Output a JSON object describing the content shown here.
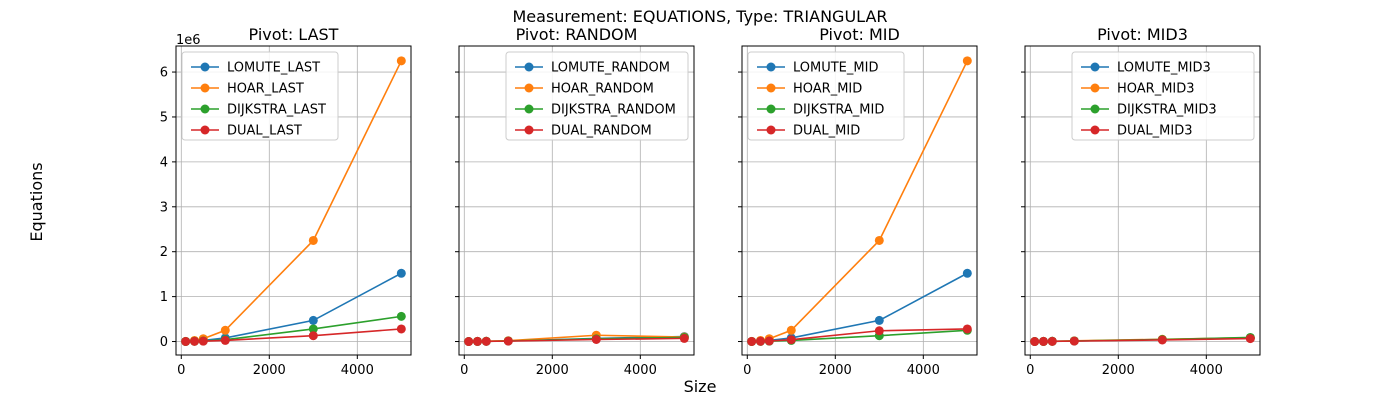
{
  "figure": {
    "suptitle": "Measurement: EQUATIONS, Type: TRIANGULAR",
    "xlabel": "Size",
    "ylabel": "Equations",
    "yscale_label": "1e6"
  },
  "colors": {
    "LOMUTE": "#1f77b4",
    "HOAR": "#ff7f0e",
    "DIJKSTRA": "#2ca02c",
    "DUAL": "#d62728",
    "grid": "#b0b0b0"
  },
  "chart_data": [
    {
      "type": "line",
      "title": "Pivot: LAST",
      "legend_position": "upper-left",
      "x": [
        100,
        300,
        500,
        1000,
        3000,
        5000
      ],
      "xlim": [
        -120,
        5220
      ],
      "ylim": [
        -300000,
        6580000
      ],
      "xticks": [
        0,
        2000,
        4000
      ],
      "xtick_labels": [
        "0",
        "2000",
        "4000"
      ],
      "yticks": [
        0,
        1000000,
        2000000,
        3000000,
        4000000,
        5000000,
        6000000
      ],
      "ytick_labels": [
        "0",
        "1",
        "2",
        "3",
        "4",
        "5",
        "6"
      ],
      "show_yticklabels": true,
      "series": [
        {
          "name": "LOMUTE_LAST",
          "color_key": "LOMUTE",
          "values": [
            1500,
            10000,
            25000,
            80000,
            470000,
            1520000
          ]
        },
        {
          "name": "HOAR_LAST",
          "color_key": "HOAR",
          "values": [
            2500,
            23000,
            62000,
            250000,
            2250000,
            6250000
          ]
        },
        {
          "name": "DIJKSTRA_LAST",
          "color_key": "DIJKSTRA",
          "values": [
            800,
            6000,
            12000,
            40000,
            280000,
            560000
          ]
        },
        {
          "name": "DUAL_LAST",
          "color_key": "DUAL",
          "values": [
            600,
            4000,
            8000,
            25000,
            130000,
            280000
          ]
        }
      ]
    },
    {
      "type": "line",
      "title": "Pivot: RANDOM",
      "legend_position": "upper-right",
      "x": [
        100,
        300,
        500,
        1000,
        3000,
        5000
      ],
      "xlim": [
        -120,
        5220
      ],
      "ylim": [
        -300000,
        6580000
      ],
      "xticks": [
        0,
        2000,
        4000
      ],
      "xtick_labels": [
        "0",
        "2000",
        "4000"
      ],
      "yticks": [
        0,
        1000000,
        2000000,
        3000000,
        4000000,
        5000000,
        6000000
      ],
      "ytick_labels": [
        "0",
        "1",
        "2",
        "3",
        "4",
        "5",
        "6"
      ],
      "show_yticklabels": false,
      "series": [
        {
          "name": "LOMUTE_RANDOM",
          "color_key": "LOMUTE",
          "values": [
            500,
            2500,
            5000,
            12000,
            70000,
            110000
          ]
        },
        {
          "name": "HOAR_RANDOM",
          "color_key": "HOAR",
          "values": [
            700,
            3500,
            7000,
            18000,
            140000,
            100000
          ]
        },
        {
          "name": "DIJKSTRA_RANDOM",
          "color_key": "DIJKSTRA",
          "values": [
            500,
            2500,
            5000,
            12000,
            60000,
            90000
          ]
        },
        {
          "name": "DUAL_RANDOM",
          "color_key": "DUAL",
          "values": [
            400,
            2000,
            4000,
            9000,
            45000,
            70000
          ]
        }
      ]
    },
    {
      "type": "line",
      "title": "Pivot: MID",
      "legend_position": "upper-left",
      "x": [
        100,
        300,
        500,
        1000,
        3000,
        5000
      ],
      "xlim": [
        -120,
        5220
      ],
      "ylim": [
        -300000,
        6580000
      ],
      "xticks": [
        0,
        2000,
        4000
      ],
      "xtick_labels": [
        "0",
        "2000",
        "4000"
      ],
      "yticks": [
        0,
        1000000,
        2000000,
        3000000,
        4000000,
        5000000,
        6000000
      ],
      "ytick_labels": [
        "0",
        "1",
        "2",
        "3",
        "4",
        "5",
        "6"
      ],
      "show_yticklabels": false,
      "series": [
        {
          "name": "LOMUTE_MID",
          "color_key": "LOMUTE",
          "values": [
            1500,
            10000,
            25000,
            80000,
            470000,
            1520000
          ]
        },
        {
          "name": "HOAR_MID",
          "color_key": "HOAR",
          "values": [
            2500,
            23000,
            62000,
            250000,
            2250000,
            6250000
          ]
        },
        {
          "name": "DIJKSTRA_MID",
          "color_key": "DIJKSTRA",
          "values": [
            600,
            4000,
            8000,
            25000,
            130000,
            250000
          ]
        },
        {
          "name": "DUAL_MID",
          "color_key": "DUAL",
          "values": [
            800,
            6000,
            12000,
            40000,
            240000,
            280000
          ]
        }
      ]
    },
    {
      "type": "line",
      "title": "Pivot: MID3",
      "legend_position": "upper-right",
      "x": [
        100,
        300,
        500,
        1000,
        3000,
        5000
      ],
      "xlim": [
        -120,
        5220
      ],
      "ylim": [
        -300000,
        6580000
      ],
      "xticks": [
        0,
        2000,
        4000
      ],
      "xtick_labels": [
        "0",
        "2000",
        "4000"
      ],
      "yticks": [
        0,
        1000000,
        2000000,
        3000000,
        4000000,
        5000000,
        6000000
      ],
      "ytick_labels": [
        "0",
        "1",
        "2",
        "3",
        "4",
        "5",
        "6"
      ],
      "show_yticklabels": false,
      "series": [
        {
          "name": "LOMUTE_MID3",
          "color_key": "LOMUTE",
          "values": [
            500,
            2500,
            5000,
            12000,
            45000,
            75000
          ]
        },
        {
          "name": "HOAR_MID3",
          "color_key": "HOAR",
          "values": [
            600,
            3000,
            6000,
            15000,
            50000,
            85000
          ]
        },
        {
          "name": "DIJKSTRA_MID3",
          "color_key": "DIJKSTRA",
          "values": [
            500,
            2500,
            5000,
            12000,
            45000,
            90000
          ]
        },
        {
          "name": "DUAL_MID3",
          "color_key": "DUAL",
          "values": [
            400,
            2000,
            4000,
            9000,
            35000,
            65000
          ]
        }
      ]
    }
  ]
}
